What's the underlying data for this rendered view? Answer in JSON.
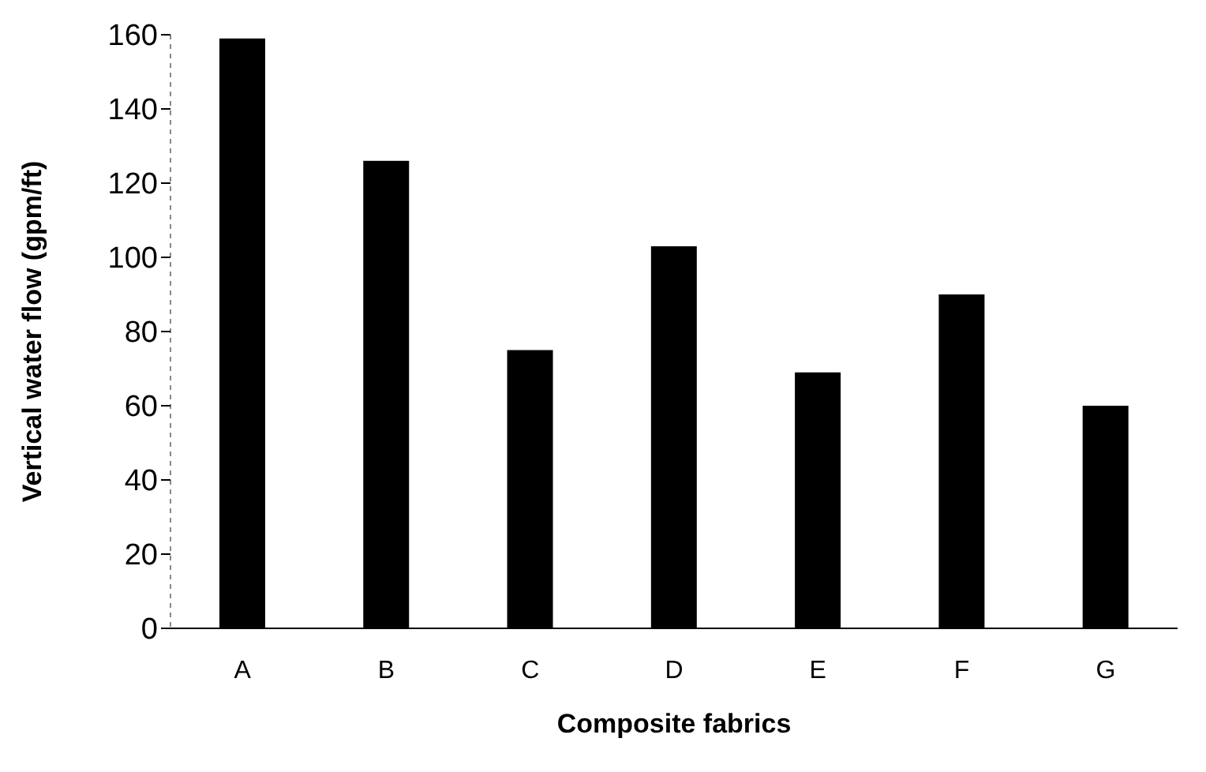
{
  "chart_data": {
    "type": "bar",
    "xlabel": "Composite fabrics",
    "ylabel": "Vertical water flow (gpm/ft)",
    "categories": [
      "A",
      "B",
      "C",
      "D",
      "E",
      "F",
      "G"
    ],
    "values": [
      159,
      126,
      75,
      103,
      69,
      90,
      60
    ],
    "color": "#000000",
    "ylim": [
      0,
      160
    ],
    "yticks": [
      0,
      20,
      40,
      60,
      80,
      100,
      120,
      140,
      160
    ],
    "grid": false,
    "legend": false
  }
}
